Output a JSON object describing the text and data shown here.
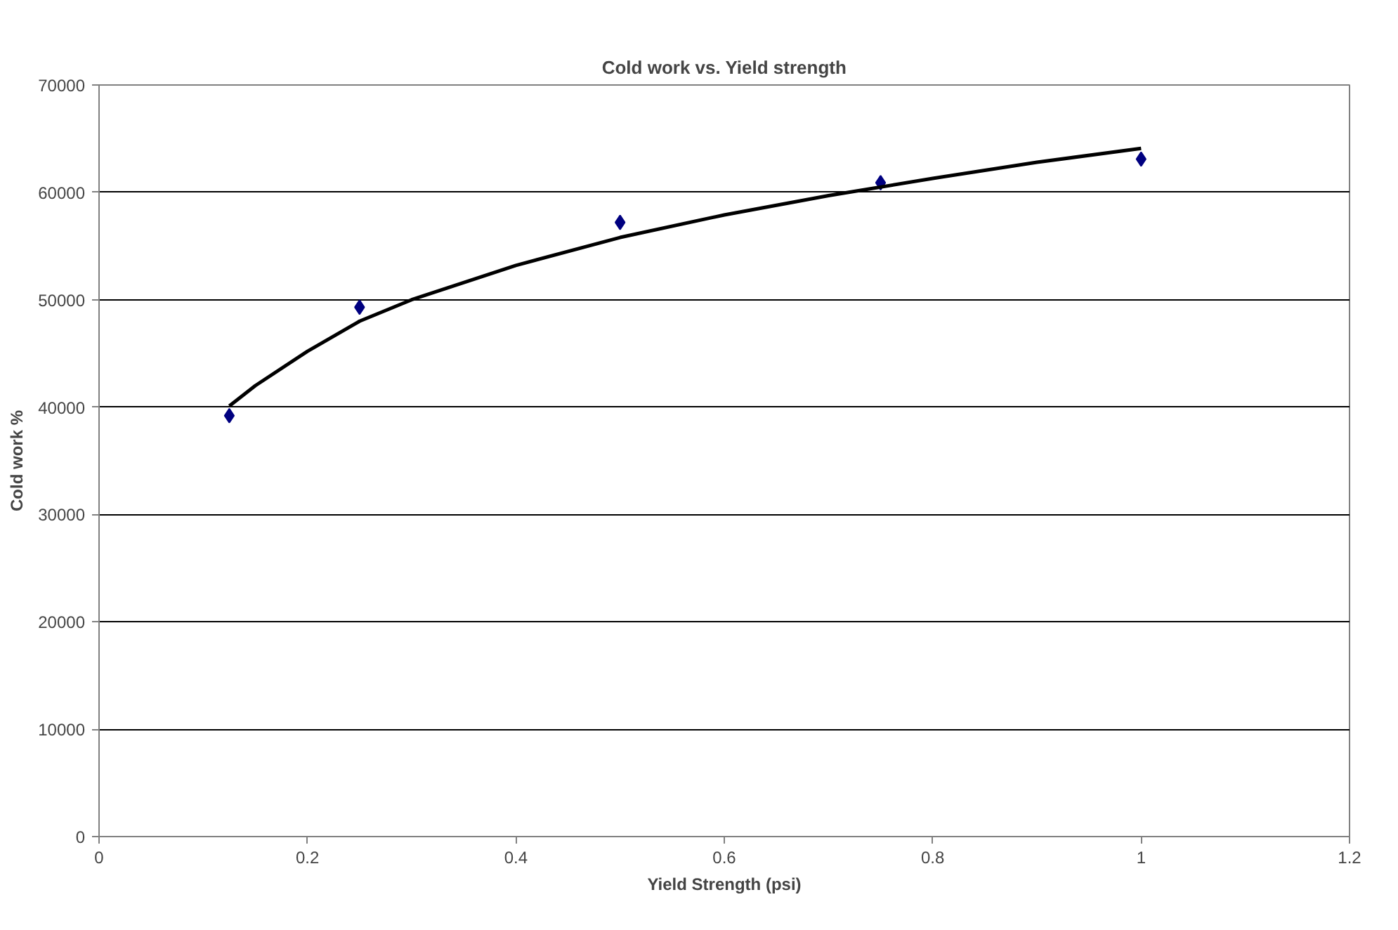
{
  "chart_data": {
    "type": "scatter",
    "title": "Cold work vs. Yield strength",
    "xlabel": "Yield Strength (psi)",
    "ylabel": "Cold work %",
    "xlim": [
      0,
      1.2
    ],
    "xticks": [
      0,
      0.2,
      0.4,
      0.6,
      0.8,
      1,
      1.2
    ],
    "ylim": [
      0,
      70000
    ],
    "yticks": [
      0,
      10000,
      20000,
      30000,
      40000,
      50000,
      60000,
      70000
    ],
    "grid": "y",
    "series": [
      {
        "marker": "diamond",
        "color": "#000080",
        "x": [
          0.125,
          0.25,
          0.5,
          0.75,
          1.0
        ],
        "values": [
          39200,
          49300,
          57200,
          60900,
          63100
        ]
      },
      {
        "type": "line",
        "color": "#000000",
        "line_style": "solid",
        "x": [
          0.125,
          0.15,
          0.2,
          0.25,
          0.3,
          0.4,
          0.5,
          0.6,
          0.7,
          0.8,
          0.9,
          1.0
        ],
        "values": [
          40100,
          42000,
          45200,
          48000,
          50000,
          53200,
          55800,
          57900,
          59700,
          61300,
          62800,
          64100
        ]
      }
    ]
  }
}
